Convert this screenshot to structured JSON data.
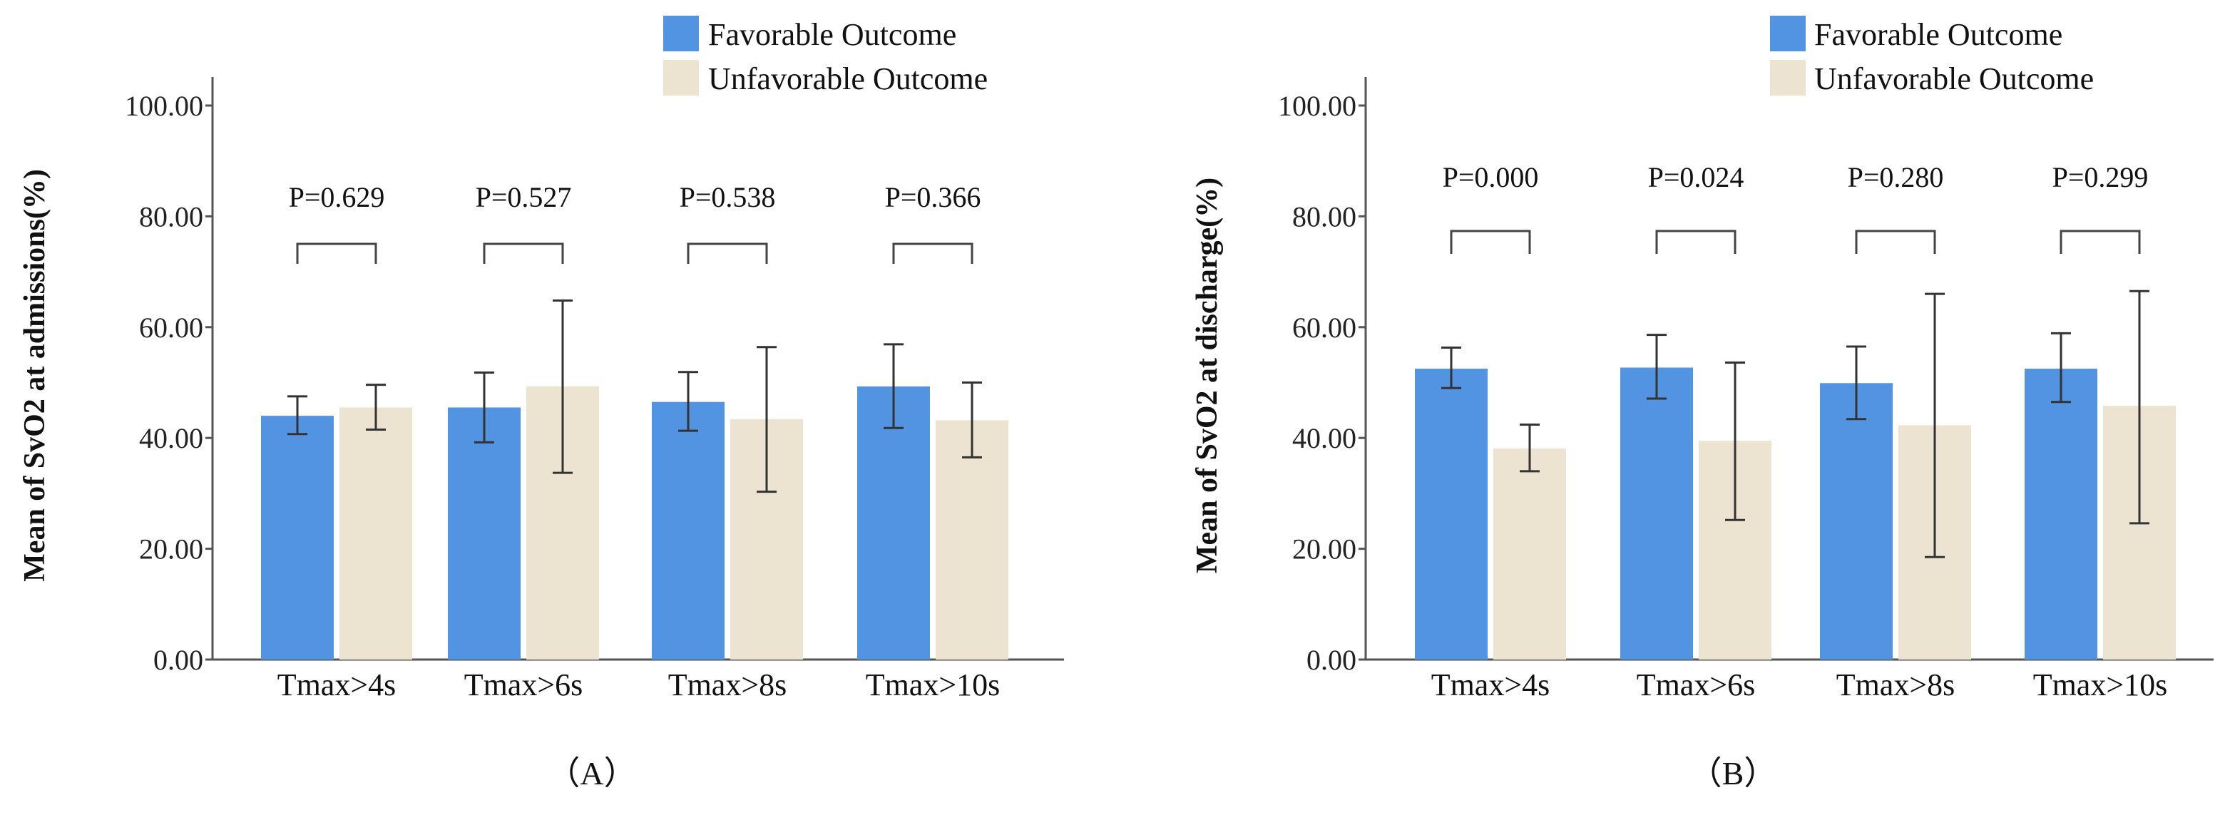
{
  "chart_data": [
    {
      "type": "bar",
      "panel_label": "（A）",
      "ylabel": "Mean of SvO2 at admissions(%)",
      "xlabel": "",
      "ylim": [
        0,
        100
      ],
      "yticks": [
        "0.00",
        "20.00",
        "40.00",
        "60.00",
        "80.00",
        "100.00"
      ],
      "categories": [
        "Tmax>4s",
        "Tmax>6s",
        "Tmax>8s",
        "Tmax>10s"
      ],
      "legend_position": "top-right",
      "p_values": [
        "P=0.629",
        "P=0.527",
        "P=0.538",
        "P=0.366"
      ],
      "series": [
        {
          "name": "Favorable Outcome",
          "color": "#5294e2",
          "values": [
            44.0,
            45.5,
            46.5,
            49.3
          ],
          "err_low": [
            40.7,
            39.2,
            41.3,
            41.8
          ],
          "err_high": [
            47.5,
            51.8,
            51.9,
            56.9
          ]
        },
        {
          "name": "Unfavorable  Outcome",
          "color": "#ece4d1",
          "values": [
            45.5,
            49.3,
            43.4,
            43.2
          ],
          "err_low": [
            41.5,
            33.7,
            30.3,
            36.5
          ],
          "err_high": [
            49.6,
            64.8,
            56.4,
            50.0
          ]
        }
      ]
    },
    {
      "type": "bar",
      "panel_label": "（B）",
      "ylabel": "Mean of SvO2 at discharge(%)",
      "xlabel": "",
      "ylim": [
        0,
        100
      ],
      "yticks": [
        "0.00",
        "20.00",
        "40.00",
        "60.00",
        "80.00",
        "100.00"
      ],
      "categories": [
        "Tmax>4s",
        "Tmax>6s",
        "Tmax>8s",
        "Tmax>10s"
      ],
      "legend_position": "top-right",
      "p_values": [
        "P=0.000",
        "P=0.024",
        "P=0.280",
        "P=0.299"
      ],
      "series": [
        {
          "name": "Favorable Outcome",
          "color": "#5294e2",
          "values": [
            52.5,
            52.7,
            49.9,
            52.5
          ],
          "err_low": [
            49.0,
            47.1,
            43.4,
            46.5
          ],
          "err_high": [
            56.3,
            58.6,
            56.5,
            58.9
          ]
        },
        {
          "name": "Unfavorable  Outcome",
          "color": "#ece4d1",
          "values": [
            38.1,
            39.5,
            42.3,
            45.8
          ],
          "err_low": [
            34.0,
            25.2,
            18.5,
            24.6
          ],
          "err_high": [
            42.4,
            53.6,
            66.0,
            66.5
          ]
        }
      ]
    }
  ]
}
